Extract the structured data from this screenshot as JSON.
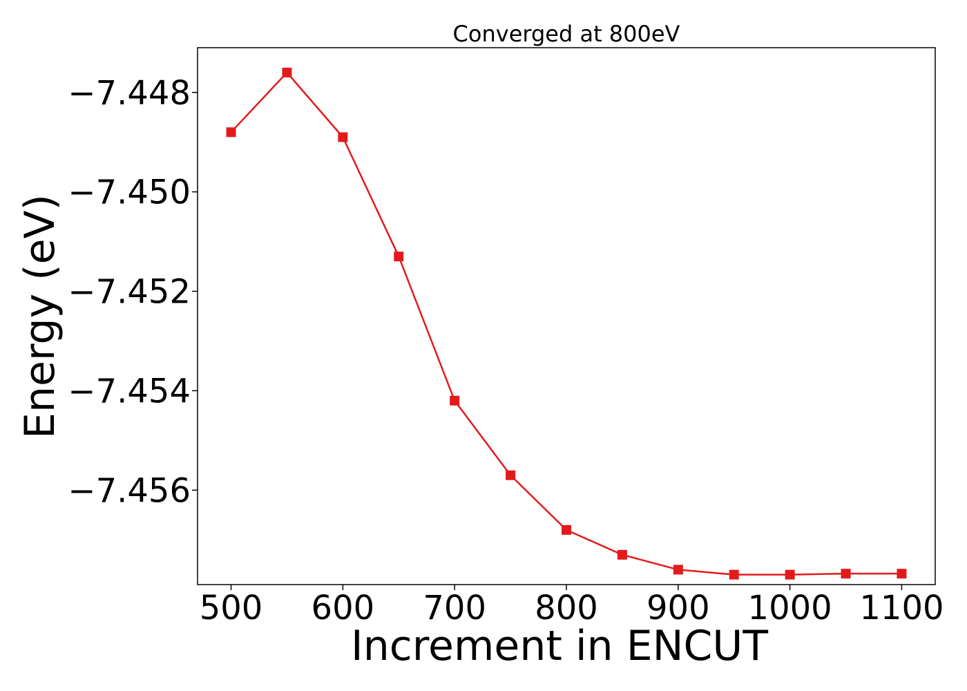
{
  "chart_data": {
    "type": "line",
    "title": "Converged at 800eV",
    "xlabel": "Increment in ENCUT",
    "ylabel": "Energy (eV)",
    "x": [
      500,
      550,
      600,
      650,
      700,
      750,
      800,
      850,
      900,
      950,
      1000,
      1050,
      1100
    ],
    "series": [
      {
        "values": [
          -7.4488,
          -7.4476,
          -7.4489,
          -7.4513,
          -7.4542,
          -7.4557,
          -7.4568,
          -7.4573,
          -7.4576,
          -7.4577,
          -7.4577,
          -7.45768,
          -7.45768
        ],
        "color": "#e31a1c",
        "marker": "square"
      }
    ],
    "xticks": [
      500,
      600,
      700,
      800,
      900,
      1000,
      1100
    ],
    "xtick_labels": [
      "500",
      "600",
      "700",
      "800",
      "900",
      "1000",
      "1100"
    ],
    "yticks": [
      -7.448,
      -7.45,
      -7.452,
      -7.454,
      -7.456
    ],
    "ytick_labels": [
      "−7.448",
      "−7.450",
      "−7.452",
      "−7.454",
      "−7.456"
    ],
    "xlim": [
      470,
      1130
    ],
    "ylim": [
      -7.4579,
      -7.4471
    ],
    "grid": false,
    "legend": false
  }
}
